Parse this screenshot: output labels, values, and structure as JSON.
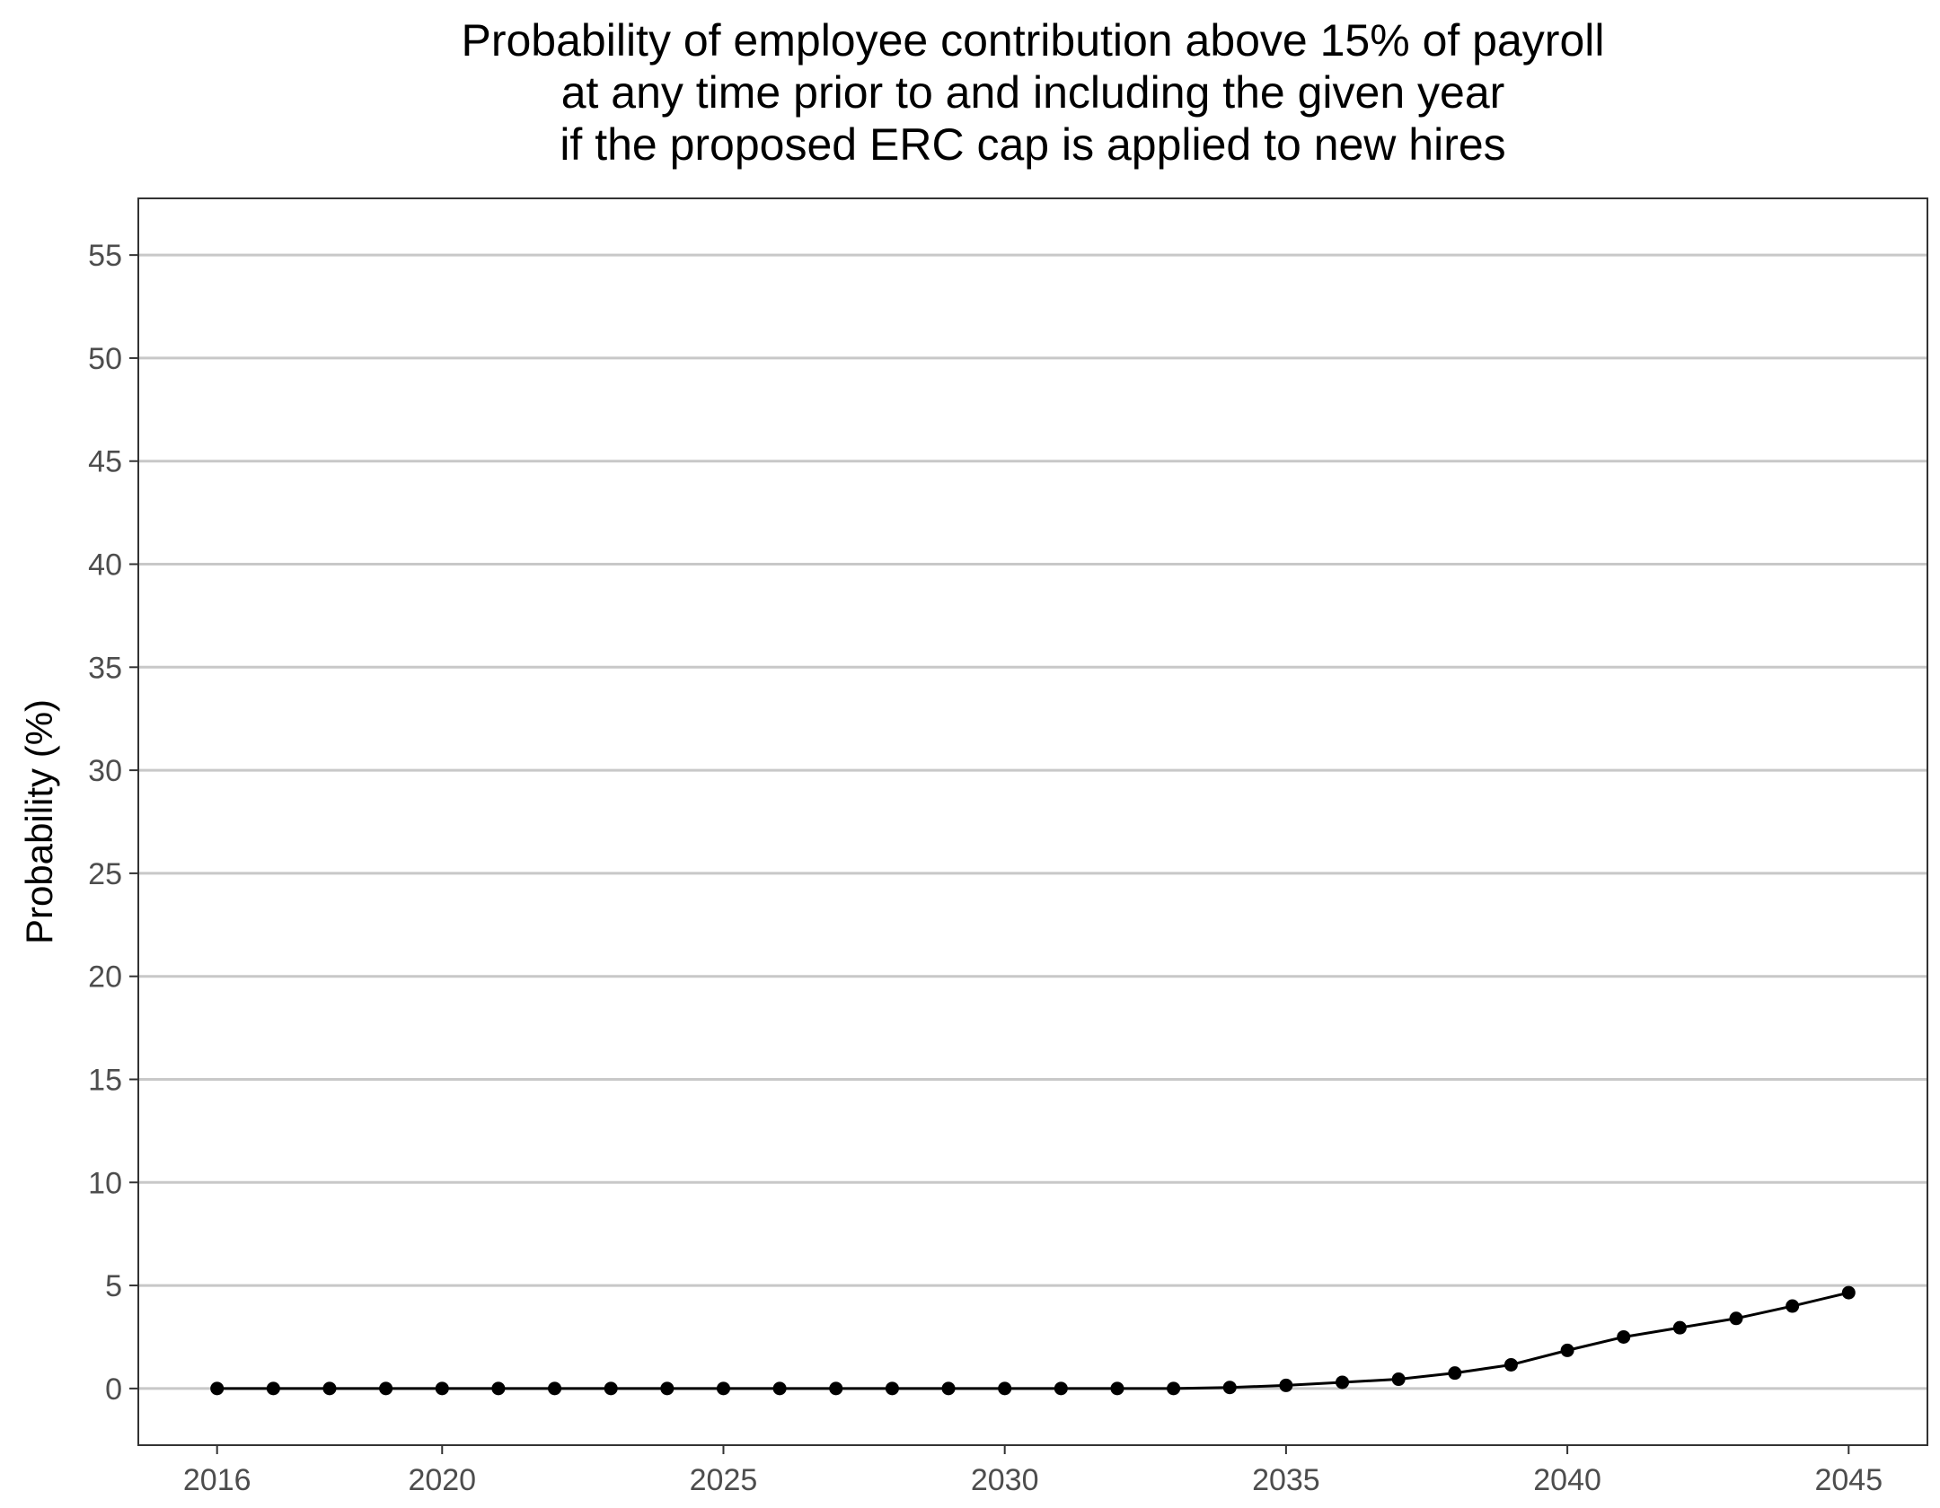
{
  "chart_data": {
    "type": "line",
    "title": [
      "Probability of employee contribution above 15% of payroll",
      "at any time prior to and including the given year",
      "if the proposed ERC cap is applied to new hires"
    ],
    "xlabel": "",
    "ylabel": "Probability (%)",
    "xlim": [
      2014.6,
      2046.4
    ],
    "ylim": [
      -2.75,
      57.75
    ],
    "x_ticks": [
      2016,
      2020,
      2025,
      2030,
      2035,
      2040,
      2045
    ],
    "y_ticks": [
      0,
      5,
      10,
      15,
      20,
      25,
      30,
      35,
      40,
      45,
      50,
      55
    ],
    "grid": "horizontal major",
    "legend": "none",
    "colors": {
      "line": "#000000",
      "grid": "#c8c8c8",
      "border": "#333333",
      "tick_text": "#4d4d4d"
    },
    "series": [
      {
        "x": [
          2016,
          2017,
          2018,
          2019,
          2020,
          2021,
          2022,
          2023,
          2024,
          2025,
          2026,
          2027,
          2028,
          2029,
          2030,
          2031,
          2032,
          2033,
          2034,
          2035,
          2036,
          2037,
          2038,
          2039,
          2040,
          2041,
          2042,
          2043,
          2044,
          2045
        ],
        "values": [
          0,
          0,
          0,
          0,
          0,
          0,
          0,
          0,
          0,
          0,
          0,
          0,
          0,
          0,
          0,
          0,
          0,
          0,
          0.05,
          0.15,
          0.3,
          0.45,
          0.75,
          1.15,
          1.85,
          2.5,
          2.95,
          3.4,
          4.0,
          4.65
        ]
      }
    ]
  }
}
